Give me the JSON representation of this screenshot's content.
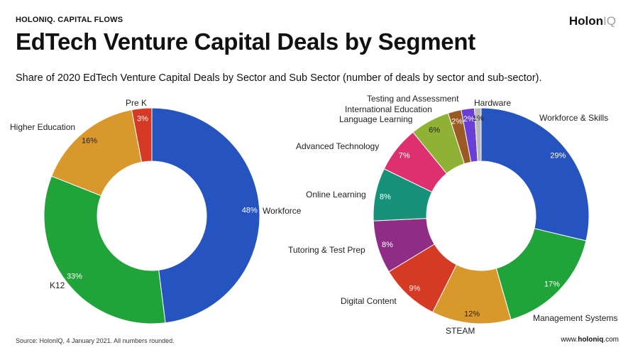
{
  "header": {
    "brand": "HOLONIQ.",
    "brand_sub": "CAPITAL FLOWS",
    "logo_main": "Holon",
    "logo_iq": "IQ",
    "title": "EdTech Venture Capital Deals by Segment",
    "subtitle": "Share of 2020 EdTech Venture Capital Deals by Sector and Sub Sector (number of deals by sector and sub-sector)."
  },
  "footer": {
    "source": "Source: HolonIQ, 4 January 2021. All numbers rounded.",
    "url_prefix": "www.",
    "url_brand": "holoniq",
    "url_suffix": ".com"
  },
  "chart_data": [
    {
      "type": "pie",
      "variant": "donut",
      "slices": [
        {
          "label": "Workforce",
          "value": 48,
          "display": "48%",
          "color": "#2553c0"
        },
        {
          "label": "K12",
          "value": 33,
          "display": "33%",
          "color": "#20a43a"
        },
        {
          "label": "Higher Education",
          "value": 16,
          "display": "16%",
          "color": "#d9982c"
        },
        {
          "label": "Pre K",
          "value": 3,
          "display": "3%",
          "color": "#d53a25"
        }
      ]
    },
    {
      "type": "pie",
      "variant": "donut",
      "slices": [
        {
          "label": "Workforce & Skills",
          "value": 29,
          "display": "29%",
          "color": "#2553c0"
        },
        {
          "label": "Management Systems",
          "value": 17,
          "display": "17%",
          "color": "#20a43a"
        },
        {
          "label": "STEAM",
          "value": 12,
          "display": "12%",
          "color": "#d9982c"
        },
        {
          "label": "Digital Content",
          "value": 9,
          "display": "9%",
          "color": "#d53a25"
        },
        {
          "label": "Tutoring & Test Prep",
          "value": 8,
          "display": "8%",
          "color": "#8e2c86"
        },
        {
          "label": "Online Learning",
          "value": 8,
          "display": "8%",
          "color": "#16917a"
        },
        {
          "label": "Advanced Technology",
          "value": 7,
          "display": "7%",
          "color": "#de2f6e"
        },
        {
          "label": "Language Learning",
          "value": 6,
          "display": "6%",
          "color": "#8fb136"
        },
        {
          "label": "International Education",
          "value": 2,
          "display": "2%",
          "color": "#9a5a22"
        },
        {
          "label": "Testing and Assessment",
          "value": 2,
          "display": "2%",
          "color": "#6a3fd6"
        },
        {
          "label": "Hardware",
          "value": 1,
          "display": "1%",
          "color": "#b9b9b9"
        }
      ]
    }
  ]
}
